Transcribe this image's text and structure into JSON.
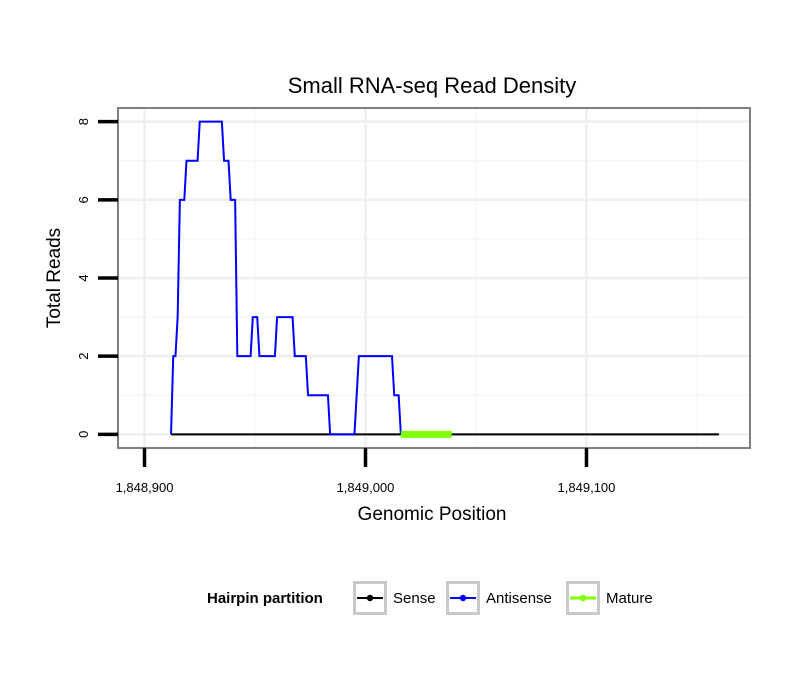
{
  "chart_data": {
    "type": "line",
    "title": "Small RNA-seq Read Density",
    "xlabel": "Genomic Position",
    "ylabel": "Total Reads",
    "xlim": [
      1848888,
      1849174
    ],
    "ylim": [
      -0.35,
      8.35
    ],
    "x_ticks": [
      1848900,
      1849000,
      1849100
    ],
    "x_tick_labels": [
      "1,848,900",
      "1,849,000",
      "1,849,100"
    ],
    "y_ticks": [
      0,
      2,
      4,
      6,
      8
    ],
    "y_tick_labels": [
      "0",
      "2",
      "4",
      "6",
      "8"
    ],
    "grid": true,
    "legend": {
      "title": "Hairpin partition",
      "position": "bottom",
      "entries": [
        "Sense",
        "Antisense",
        "Mature"
      ]
    },
    "series": [
      {
        "name": "Sense",
        "color": "#000000",
        "x": [
          1848912,
          1849160
        ],
        "y": [
          0,
          0
        ]
      },
      {
        "name": "Antisense",
        "color": "#0000ff",
        "x": [
          1848912,
          1848913,
          1848914,
          1848915,
          1848916,
          1848917,
          1848918,
          1848919,
          1848920,
          1848921,
          1848922,
          1848923,
          1848924,
          1848925,
          1848926,
          1848927,
          1848928,
          1848929,
          1848930,
          1848931,
          1848932,
          1848933,
          1848934,
          1848935,
          1848936,
          1848937,
          1848938,
          1848939,
          1848940,
          1848941,
          1848942,
          1848943,
          1848944,
          1848945,
          1848946,
          1848947,
          1848948,
          1848949,
          1848950,
          1848951,
          1848952,
          1848953,
          1848954,
          1848955,
          1848956,
          1848957,
          1848958,
          1848959,
          1848960,
          1848961,
          1848962,
          1848963,
          1848964,
          1848965,
          1848966,
          1848967,
          1848968,
          1848969,
          1848970,
          1848971,
          1848972,
          1848973,
          1848974,
          1848975,
          1848976,
          1848977,
          1848978,
          1848979,
          1848980,
          1848981,
          1848982,
          1848983,
          1848984,
          1848985,
          1848986,
          1848987,
          1848988,
          1848989,
          1848990,
          1848991,
          1848992,
          1848993,
          1848994,
          1848995,
          1848996,
          1848997,
          1848998,
          1848999,
          1849000,
          1849001,
          1849002,
          1849003,
          1849004,
          1849005,
          1849006,
          1849007,
          1849008,
          1849009,
          1849010,
          1849011,
          1849012,
          1849013,
          1849014,
          1849015,
          1849016
        ],
        "y": [
          0,
          2,
          2,
          3,
          6,
          6,
          6,
          7,
          7,
          7,
          7,
          7,
          7,
          8,
          8,
          8,
          8,
          8,
          8,
          8,
          8,
          8,
          8,
          8,
          7,
          7,
          7,
          6,
          6,
          6,
          2,
          2,
          2,
          2,
          2,
          2,
          2,
          3,
          3,
          3,
          2,
          2,
          2,
          2,
          2,
          2,
          2,
          2,
          3,
          3,
          3,
          3,
          3,
          3,
          3,
          3,
          2,
          2,
          2,
          2,
          2,
          2,
          1,
          1,
          1,
          1,
          1,
          1,
          1,
          1,
          1,
          1,
          0,
          0,
          0,
          0,
          0,
          0,
          0,
          0,
          0,
          0,
          0,
          0,
          1,
          2,
          2,
          2,
          2,
          2,
          2,
          2,
          2,
          2,
          2,
          2,
          2,
          2,
          2,
          2,
          2,
          1,
          1,
          1,
          0
        ]
      },
      {
        "name": "Mature",
        "color": "#7fff00",
        "x": [
          1849016,
          1849039
        ],
        "y": [
          0,
          0
        ]
      }
    ]
  }
}
